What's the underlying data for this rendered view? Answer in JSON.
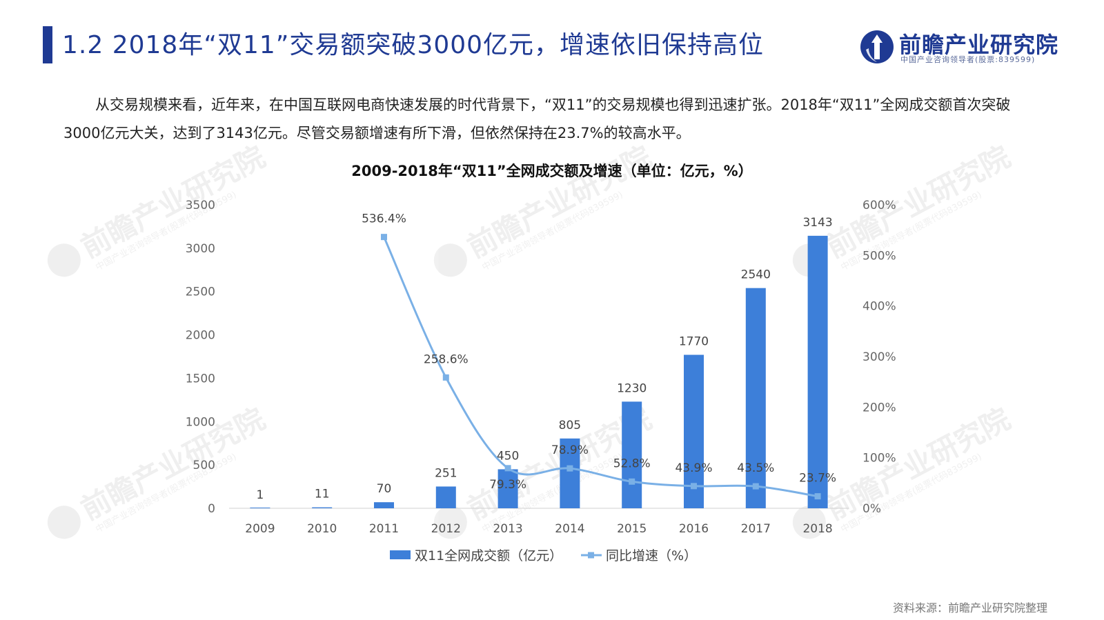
{
  "header": {
    "title": "1.2 2018年“双11”交易额突破3000亿元，增速依旧保持高位"
  },
  "logo": {
    "name": "前瞻产业研究院",
    "subtitle": "中国产业咨询领导者(股票:839599)",
    "watermark": "前瞻产业研究院",
    "watermark_sub": "中国产业咨询领导者(股票代码839599)"
  },
  "body": {
    "paragraph": "从交易规模来看，近年来，在中国互联网电商快速发展的时代背景下，“双11”的交易规模也得到迅速扩张。2018年“双11”全网成交额首次突破3000亿元大关，达到了3143亿元。尽管交易额增速有所下滑，但依然保持在23.7%的较高水平。"
  },
  "chart_data": {
    "type": "bar",
    "title": "2009-2018年“双11”全网成交额及增速（单位：亿元，%）",
    "categories": [
      "2009",
      "2010",
      "2011",
      "2012",
      "2013",
      "2014",
      "2015",
      "2016",
      "2017",
      "2018"
    ],
    "series": [
      {
        "name": "双11全网成交额（亿元）",
        "type": "bar",
        "axis": "left",
        "values": [
          1,
          11,
          70,
          251,
          450,
          805,
          1230,
          1770,
          2540,
          3143
        ],
        "labels": [
          "1",
          "11",
          "70",
          "251",
          "450",
          "805",
          "1230",
          "1770",
          "2540",
          "3143"
        ],
        "color": "#3d7fd9"
      },
      {
        "name": "同比增速（%）",
        "type": "line",
        "axis": "right",
        "values": [
          null,
          null,
          536.4,
          258.6,
          79.3,
          78.9,
          52.8,
          43.9,
          43.5,
          23.7
        ],
        "labels": [
          "",
          "",
          "536.4%",
          "258.6%",
          "79.3%",
          "78.9%",
          "52.8%",
          "43.9%",
          "43.5%",
          "23.7%"
        ],
        "color": "#7ab0e6"
      }
    ],
    "y_left": {
      "ylim": [
        0,
        3500
      ],
      "ticks": [
        0,
        500,
        1000,
        1500,
        2000,
        2500,
        3000,
        3500
      ],
      "tick_labels": [
        "0",
        "500",
        "1000",
        "1500",
        "2000",
        "2500",
        "3000",
        "3500"
      ]
    },
    "y_right": {
      "ylim": [
        0,
        600
      ],
      "ticks": [
        0,
        100,
        200,
        300,
        400,
        500,
        600
      ],
      "tick_labels": [
        "0%",
        "100%",
        "200%",
        "300%",
        "400%",
        "500%",
        "600%"
      ]
    },
    "grid": false,
    "legend": "bottom"
  },
  "footer": {
    "source": "资料来源：前瞻产业研究院整理"
  }
}
